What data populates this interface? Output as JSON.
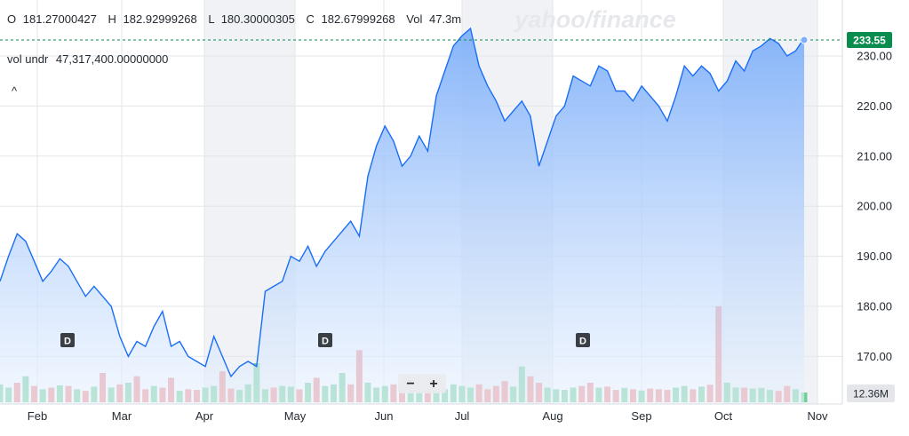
{
  "watermark": "yahoo/finance",
  "ohlc": {
    "o_label": "O",
    "o_value": "181.27000427",
    "h_label": "H",
    "h_value": "182.92999268",
    "l_label": "L",
    "l_value": "180.30000305",
    "c_label": "C",
    "c_value": "182.67999268",
    "vol_label": "Vol",
    "vol_value": "47.3m"
  },
  "indicator": {
    "name": "vol undr",
    "value": "47,317,400.00000000"
  },
  "collapse_glyph": "^",
  "zoom": {
    "minus": "−",
    "plus": "+"
  },
  "dividend_marker": "D",
  "colors": {
    "line": "#1a6ef5",
    "area_top": "#7fb0f9",
    "area_bottom": "#e9f2fe",
    "vol_up": "#73cf9a",
    "vol_down": "#f08b8b",
    "price_badge": "#0a8c4e",
    "vol_badge": "#e4e6ea",
    "shade": "#f0f2f5"
  },
  "chart_data": {
    "type": "area",
    "title": "",
    "ylim": [
      163,
      237
    ],
    "y_ticks": [
      "230.00",
      "220.00",
      "210.00",
      "200.00",
      "190.00",
      "180.00",
      "170.00"
    ],
    "x_ticks": [
      "Feb",
      "Mar",
      "Apr",
      "May",
      "Jun",
      "Jul",
      "Aug",
      "Sep",
      "Oct",
      "Nov"
    ],
    "last_price": "233.55",
    "volume_label": "12.36M",
    "dividends": [
      "Feb",
      "May",
      "Aug"
    ],
    "series": [
      {
        "close": [
          185.0,
          190.0,
          194.5,
          193.0,
          189.0,
          185.0,
          187.0,
          189.5,
          188.0,
          185.0,
          182.0,
          184.0,
          182.0,
          180.0,
          174.0,
          170.0,
          173.0,
          172.0,
          176.0,
          179.0,
          172.0,
          173.0,
          170.0,
          169.0,
          168.0,
          174.0,
          170.0,
          166.0,
          168.0,
          169.0,
          168.0,
          183.0,
          184.0,
          185.0,
          190.0,
          189.0,
          192.0,
          188.0,
          191.0,
          193.0,
          195.0,
          197.0,
          194.0,
          206.0,
          212.0,
          216.0,
          213.0,
          208.0,
          210.0,
          214.0,
          211.0,
          222.0,
          227.0,
          232.0,
          234.0,
          235.5,
          228.0,
          224.0,
          221.0,
          217.0,
          219.0,
          221.0,
          218.0,
          208.0,
          213.0,
          218.0,
          220.0,
          226.0,
          225.0,
          224.0,
          228.0,
          227.0,
          223.0,
          223.0,
          221.0,
          224.0,
          222.0,
          220.0,
          217.0,
          222.0,
          228.0,
          226.0,
          228.0,
          226.5,
          223.0,
          225.0,
          229.0,
          227.0,
          231.0,
          232.0,
          233.5,
          232.5,
          230.0,
          231.0,
          233.55
        ],
        "volume": [
          55,
          45,
          60,
          80,
          50,
          40,
          45,
          52,
          50,
          40,
          35,
          48,
          90,
          45,
          55,
          60,
          80,
          40,
          50,
          45,
          75,
          35,
          40,
          38,
          45,
          50,
          95,
          42,
          38,
          55,
          120,
          40,
          45,
          50,
          48,
          40,
          60,
          75,
          50,
          55,
          90,
          55,
          160,
          60,
          45,
          50,
          55,
          40,
          40,
          35,
          50,
          45,
          40,
          55,
          50,
          45,
          55,
          40,
          50,
          65,
          48,
          110,
          80,
          60,
          45,
          40,
          38,
          45,
          50,
          60,
          45,
          48,
          38,
          44,
          40,
          36,
          42,
          40,
          38,
          45,
          50,
          40,
          48,
          54,
          295,
          60,
          45,
          45,
          42,
          44,
          38,
          35,
          50,
          40,
          30
        ],
        "volume_up": [
          true,
          true,
          false,
          true,
          false,
          true,
          false,
          true,
          false,
          true,
          false,
          true,
          false,
          true,
          false,
          true,
          false,
          false,
          true,
          false,
          false,
          true,
          false,
          false,
          true,
          true,
          false,
          false,
          true,
          true,
          true,
          true,
          false,
          true,
          true,
          false,
          true,
          false,
          true,
          true,
          true,
          false,
          false,
          true,
          true,
          true,
          false,
          false,
          true,
          true,
          false,
          true,
          true,
          true,
          true,
          true,
          false,
          false,
          false,
          false,
          true,
          true,
          false,
          false,
          true,
          true,
          true,
          true,
          false,
          false,
          true,
          false,
          false,
          true,
          false,
          true,
          false,
          false,
          false,
          true,
          true,
          false,
          true,
          false,
          false,
          true,
          true,
          false,
          true,
          true,
          true,
          false,
          false,
          true,
          true
        ]
      }
    ]
  }
}
